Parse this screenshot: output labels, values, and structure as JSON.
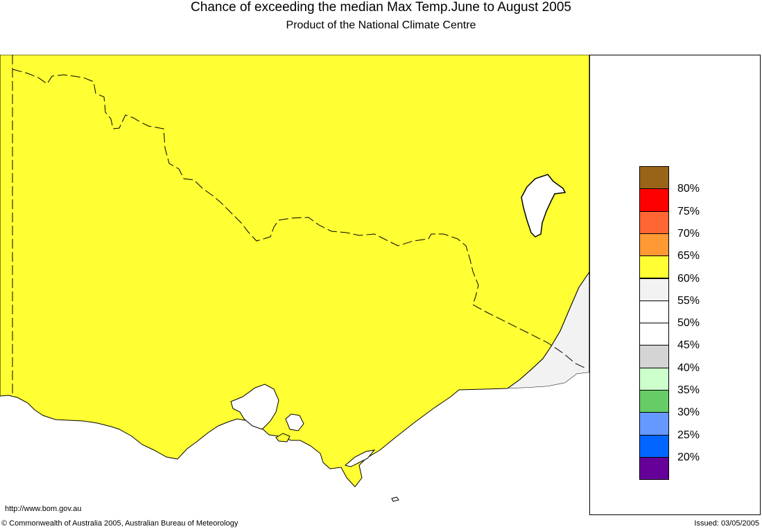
{
  "header": {
    "title": "Chance of exceeding the median Max Temp.June to August 2005",
    "subtitle": "Product of the National Climate Centre"
  },
  "map": {
    "region_color": "#ffff33",
    "east_region_color": "#f2f2f2",
    "sea_color": "#ffffff"
  },
  "legend": {
    "swatches": [
      {
        "color": "#9a6418"
      },
      {
        "color": "#ff0000"
      },
      {
        "color": "#ff6633"
      },
      {
        "color": "#ff9933"
      },
      {
        "color": "#ffff33"
      },
      {
        "color": "#f2f2f2"
      },
      {
        "color": "#ffffff"
      },
      {
        "color": "#ffffff"
      },
      {
        "color": "#d4d4d4"
      },
      {
        "color": "#ccffcc"
      },
      {
        "color": "#66cc66"
      },
      {
        "color": "#6699ff"
      },
      {
        "color": "#0066ff"
      },
      {
        "color": "#660099"
      }
    ],
    "labels": [
      "80%",
      "75%",
      "70%",
      "65%",
      "60%",
      "55%",
      "50%",
      "45%",
      "40%",
      "35%",
      "30%",
      "25%",
      "20%"
    ]
  },
  "footer": {
    "url": "http://www.bom.gov.au",
    "copyright": "© Commonwealth of Australia 2005, Australian Bureau of Meteorology",
    "issued": "Issued: 03/05/2005"
  }
}
